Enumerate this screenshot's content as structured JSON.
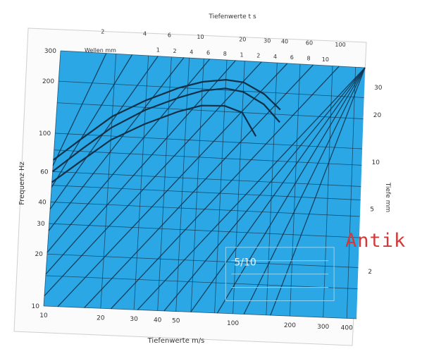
{
  "chart_data": {
    "type": "line",
    "title": "",
    "xlabel": "Tiefenwerte m/s",
    "ylabel": "Frequenz Hz",
    "top_axis_label": "Tiefenwerte t s",
    "right_axis_label": "Tiefe mm",
    "x_ticks": [
      "10",
      "20",
      "30",
      "40",
      "50",
      "100",
      "200",
      "300",
      "400"
    ],
    "y_ticks": [
      "10",
      "20",
      "30",
      "40",
      "60",
      "100",
      "200",
      "300"
    ],
    "right_ticks": [
      "2",
      "5",
      "10",
      "20",
      "30"
    ],
    "top_ticks": [
      "2",
      "4",
      "6",
      "10",
      "20",
      "30",
      "40",
      "60",
      "100"
    ],
    "top_row_label": "Wellen mm",
    "top_row_ticks": [
      "1",
      "2",
      "4",
      "6",
      "8",
      "1",
      "2",
      "4",
      "6",
      "8",
      "10"
    ],
    "xlim": [
      10,
      450
    ],
    "ylim": [
      10,
      300
    ],
    "x_scale": "log",
    "y_scale": "log",
    "grid": true,
    "background_color": "#2aa7e4",
    "curve_color": "#10304a",
    "series": [
      {
        "x": [
          10,
          14,
          20,
          30,
          45,
          60,
          80,
          100,
          130,
          160
        ],
        "values": [
          70,
          95,
          130,
          165,
          200,
          220,
          230,
          225,
          195,
          160
        ]
      },
      {
        "x": [
          10,
          14,
          20,
          30,
          45,
          60,
          80,
          100,
          130,
          160
        ],
        "values": [
          60,
          82,
          112,
          145,
          175,
          195,
          205,
          198,
          170,
          135
        ]
      },
      {
        "x": [
          10,
          14,
          20,
          30,
          45,
          60,
          80,
          100,
          120
        ],
        "values": [
          52,
          70,
          95,
          120,
          145,
          160,
          162,
          150,
          110
        ]
      }
    ],
    "inset_text": "5/10"
  },
  "watermark": "Antik"
}
